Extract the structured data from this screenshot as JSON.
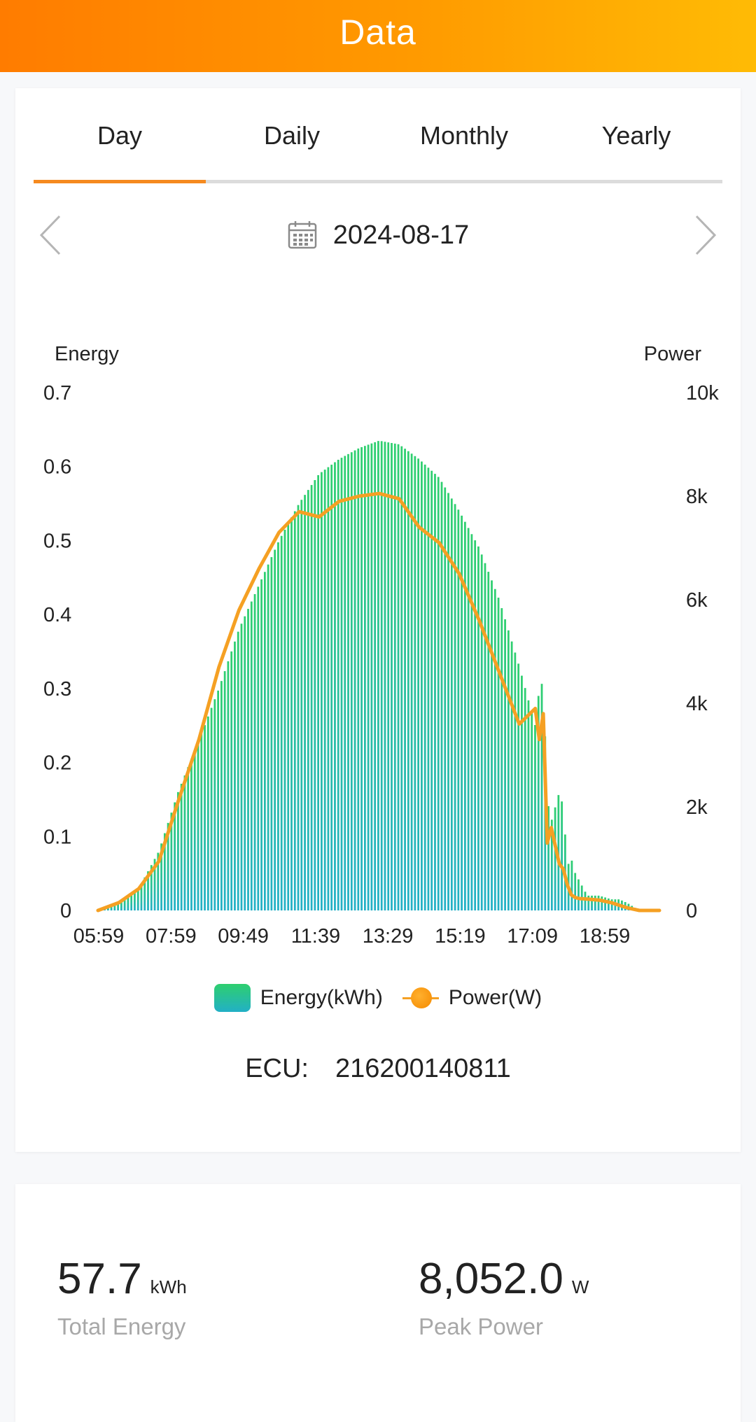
{
  "header": {
    "title": "Data"
  },
  "tabs": [
    {
      "label": "Day"
    },
    {
      "label": "Daily"
    },
    {
      "label": "Monthly"
    },
    {
      "label": "Yearly"
    }
  ],
  "active_tab": "Day",
  "date": "2024-08-17",
  "icons": {
    "prev": "chevron-left-icon",
    "next": "chevron-right-icon",
    "calendar": "calendar-icon"
  },
  "colors": {
    "header_start": "#ff7c00",
    "header_end": "#ffbb05",
    "accent": "#f58a1f",
    "energy_top": "#2ecf6f",
    "energy_bottom": "#22b0c6",
    "power_line": "#f5a023"
  },
  "legend": {
    "energy": "Energy(kWh)",
    "power": "Power(W)"
  },
  "ecu": {
    "label": "ECU:",
    "value": "216200140811"
  },
  "stats": {
    "total_energy": {
      "value": "57.7",
      "unit": "kWh",
      "label": "Total Energy"
    },
    "peak_power": {
      "value": "8,052.0",
      "unit": "W",
      "label": "Peak Power"
    }
  },
  "chart_data": {
    "type": "bar+line",
    "left_axis_title": "Energy",
    "right_axis_title": "Power",
    "left_ticks": [
      "0",
      "0.1",
      "0.2",
      "0.3",
      "0.4",
      "0.5",
      "0.6",
      "0.7"
    ],
    "right_ticks": [
      "0",
      "2k",
      "4k",
      "6k",
      "8k",
      "10k"
    ],
    "left_ylim": [
      0,
      0.7
    ],
    "right_ylim": [
      0,
      10000
    ],
    "x_tick_labels": [
      "05:59",
      "07:59",
      "09:49",
      "11:39",
      "13:29",
      "15:19",
      "17:09",
      "18:59"
    ],
    "x_hours": [
      5.98,
      6.5,
      7.0,
      7.5,
      7.98,
      8.5,
      9.0,
      9.5,
      10.0,
      10.5,
      11.0,
      11.5,
      12.0,
      12.5,
      13.0,
      13.5,
      14.0,
      14.5,
      15.0,
      15.5,
      16.0,
      16.5,
      16.9,
      17.0,
      17.1,
      17.2,
      17.3,
      17.5,
      17.6,
      17.7,
      17.8,
      17.9,
      18.0,
      18.2,
      18.5,
      18.8,
      19.0,
      19.2,
      19.5,
      19.8,
      20.0
    ],
    "energy_kwh": [
      0.0,
      0.01,
      0.03,
      0.08,
      0.16,
      0.23,
      0.3,
      0.38,
      0.44,
      0.5,
      0.55,
      0.59,
      0.61,
      0.625,
      0.635,
      0.63,
      0.61,
      0.585,
      0.54,
      0.49,
      0.42,
      0.33,
      0.25,
      0.3,
      0.31,
      0.15,
      0.12,
      0.16,
      0.14,
      0.06,
      0.07,
      0.05,
      0.04,
      0.02,
      0.02,
      0.015,
      0.015,
      0.01,
      0.0,
      0.0,
      0.0
    ],
    "power_w": [
      0,
      150,
      420,
      950,
      2100,
      3300,
      4700,
      5800,
      6600,
      7300,
      7700,
      7600,
      7900,
      8000,
      8052,
      7950,
      7400,
      7100,
      6500,
      5600,
      4600,
      3600,
      3900,
      3300,
      3800,
      1300,
      1600,
      900,
      800,
      500,
      300,
      250,
      230,
      220,
      200,
      150,
      100,
      50,
      0,
      0,
      0
    ]
  }
}
